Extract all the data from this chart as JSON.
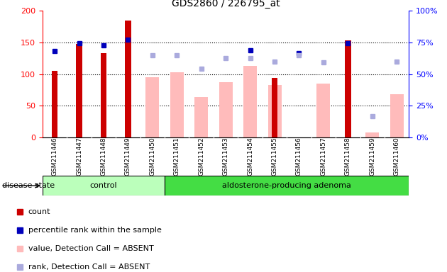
{
  "title": "GDS2860 / 226795_at",
  "samples": [
    "GSM211446",
    "GSM211447",
    "GSM211448",
    "GSM211449",
    "GSM211450",
    "GSM211451",
    "GSM211452",
    "GSM211453",
    "GSM211454",
    "GSM211455",
    "GSM211456",
    "GSM211457",
    "GSM211458",
    "GSM211459",
    "GSM211460"
  ],
  "n_control": 5,
  "count_values": [
    105,
    148,
    133,
    185,
    null,
    null,
    null,
    null,
    null,
    94,
    null,
    null,
    153,
    null,
    null
  ],
  "rank_values": [
    136,
    149,
    145,
    154,
    null,
    null,
    null,
    null,
    138,
    null,
    133,
    null,
    149,
    null,
    null
  ],
  "absent_value_values": [
    null,
    null,
    null,
    null,
    95,
    103,
    64,
    87,
    113,
    83,
    null,
    85,
    null,
    8,
    68
  ],
  "absent_rank_values": [
    null,
    null,
    null,
    null,
    130,
    130,
    109,
    125,
    125,
    120,
    130,
    119,
    null,
    33,
    120
  ],
  "ylim_left": [
    0,
    200
  ],
  "ylim_right": [
    0,
    100
  ],
  "yticks_left": [
    0,
    50,
    100,
    150,
    200
  ],
  "yticks_right": [
    0,
    25,
    50,
    75,
    100
  ],
  "ytick_labels_right": [
    "0%",
    "25%",
    "50%",
    "75%",
    "100%"
  ],
  "bar_color_present": "#cc0000",
  "bar_color_absent_value": "#ffbbbb",
  "dot_color_present": "#0000bb",
  "dot_color_absent_rank": "#aaaadd",
  "bg_color": "#ffffff",
  "gray_tick_bg": "#cccccc",
  "group_control_color": "#bbffbb",
  "group_adenoma_color": "#44dd44",
  "group_label_control": "control",
  "group_label_adenoma": "aldosterone-producing adenoma",
  "disease_state_label": "disease state",
  "legend_items": [
    {
      "label": "count",
      "color": "#cc0000"
    },
    {
      "label": "percentile rank within the sample",
      "color": "#0000bb"
    },
    {
      "label": "value, Detection Call = ABSENT",
      "color": "#ffbbbb"
    },
    {
      "label": "rank, Detection Call = ABSENT",
      "color": "#aaaadd"
    }
  ]
}
